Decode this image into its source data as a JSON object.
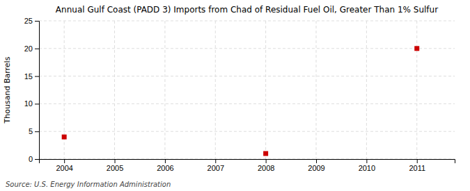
{
  "chart_data": {
    "type": "scatter",
    "title": "Annual Gulf Coast (PADD 3) Imports from Chad of Residual Fuel Oil, Greater Than 1% Sulfur",
    "ylabel": "Thousand Barrels",
    "annotation": "Source: U.S. Energy Information Administration",
    "x": [
      2004,
      2008,
      2011
    ],
    "values": [
      4,
      1,
      20
    ],
    "color": "#cc0000",
    "marker": "square",
    "xlim": [
      2003.5,
      2011.75
    ],
    "ylim": [
      0,
      25
    ],
    "xticks": [
      2004,
      2005,
      2006,
      2007,
      2008,
      2009,
      2010,
      2011
    ],
    "yticks": [
      0,
      5,
      10,
      15,
      20,
      25
    ],
    "grid": true
  }
}
